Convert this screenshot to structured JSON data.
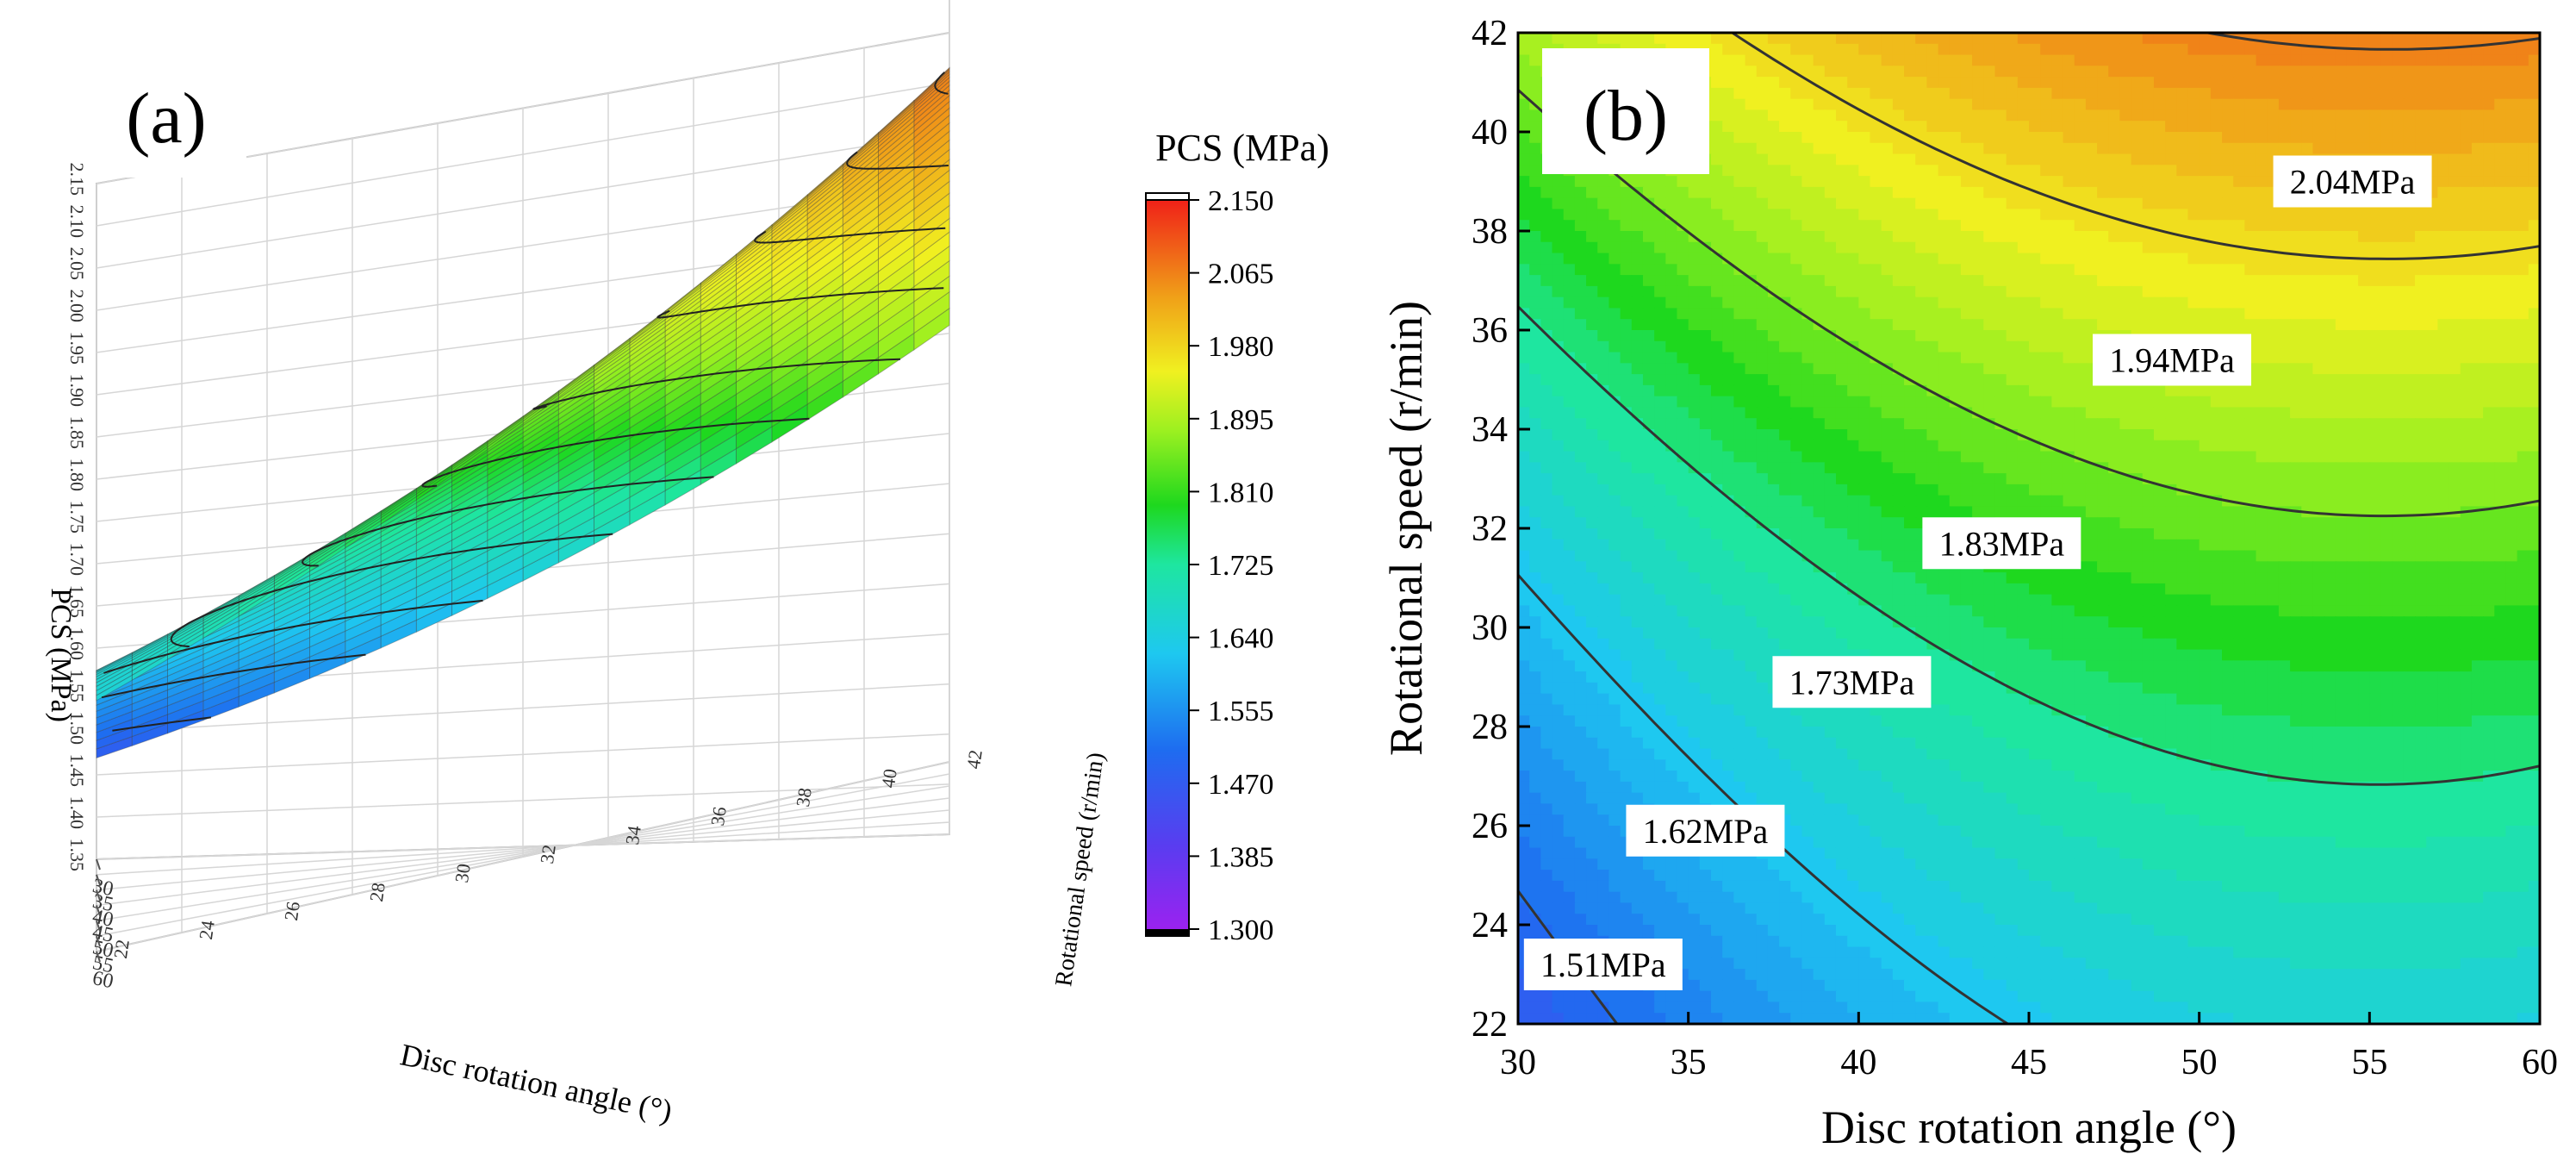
{
  "chart_data": [
    {
      "type": "surface3d",
      "panel_label": "(a)",
      "zlabel": "PCS (MPa)",
      "xlabel": "Disc rotation angle (°)",
      "ylabel": "Rotational speed (r/min)",
      "x_ticks": [
        "30",
        "35",
        "40",
        "45",
        "50",
        "55",
        "60"
      ],
      "y_ticks": [
        "22",
        "24",
        "26",
        "28",
        "30",
        "32",
        "34",
        "36",
        "38",
        "40",
        "42"
      ],
      "z_ticks": [
        "1.35",
        "1.40",
        "1.45",
        "1.50",
        "1.55",
        "1.60",
        "1.65",
        "1.70",
        "1.75",
        "1.80",
        "1.85",
        "1.90",
        "1.95",
        "2.00",
        "2.05",
        "2.10",
        "2.15"
      ],
      "xlim": [
        30,
        60
      ],
      "ylim": [
        22,
        42
      ],
      "zlim": [
        1.35,
        2.15
      ],
      "surface_corners": {
        "x30_y22": 1.455,
        "x60_y22": 1.655,
        "x30_y42": 1.855,
        "x60_y42": 2.15
      },
      "colorbar": {
        "title": "PCS (MPa)",
        "ticks": [
          "2.150",
          "2.065",
          "1.980",
          "1.895",
          "1.810",
          "1.725",
          "1.640",
          "1.555",
          "1.470",
          "1.385",
          "1.300"
        ],
        "range": [
          1.3,
          2.15
        ]
      }
    },
    {
      "type": "contour",
      "panel_label": "(b)",
      "xlabel": "Disc rotation angle (°)",
      "ylabel": "Rotational speed (r/min)",
      "xlim": [
        30,
        60
      ],
      "ylim": [
        22,
        42
      ],
      "x_ticks": [
        "30",
        "35",
        "40",
        "45",
        "50",
        "55",
        "60"
      ],
      "y_ticks": [
        "22",
        "24",
        "26",
        "28",
        "30",
        "32",
        "34",
        "36",
        "38",
        "40",
        "42"
      ],
      "contour_levels": [
        {
          "value": 1.51,
          "label": "1.51MPa"
        },
        {
          "value": 1.62,
          "label": "1.62MPa"
        },
        {
          "value": 1.73,
          "label": "1.73MPa"
        },
        {
          "value": 1.83,
          "label": "1.83MPa"
        },
        {
          "value": 1.94,
          "label": "1.94MPa"
        },
        {
          "value": 2.04,
          "label": "2.04MPa"
        }
      ]
    }
  ]
}
